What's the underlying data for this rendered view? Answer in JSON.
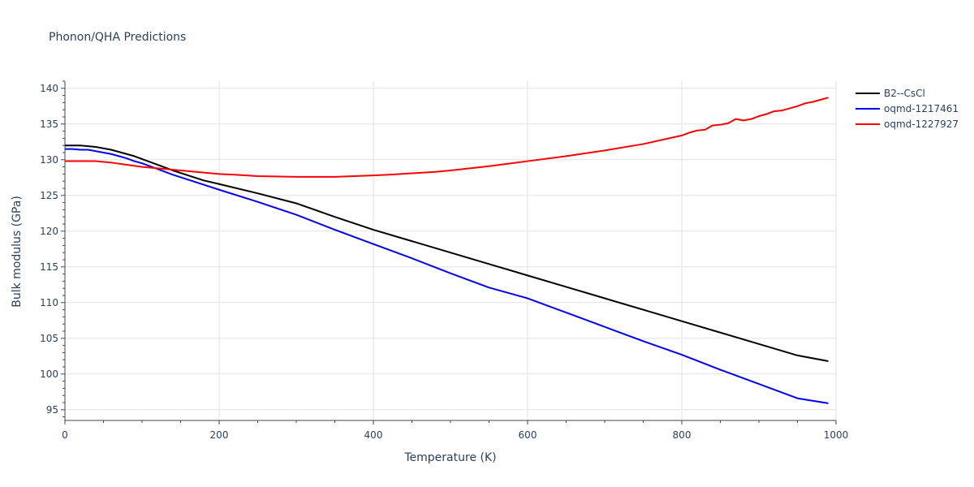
{
  "chart_data": {
    "type": "line",
    "title": "Phonon/QHA Predictions",
    "xlabel": "Temperature (K)",
    "ylabel": "Bulk modulus (GPa)",
    "xlim": [
      0,
      1000
    ],
    "ylim": [
      93.5,
      141
    ],
    "x_ticks": [
      0,
      200,
      400,
      600,
      800,
      1000
    ],
    "y_ticks": [
      95,
      100,
      105,
      110,
      115,
      120,
      125,
      130,
      135,
      140
    ],
    "grid": true,
    "legend_position": "top-right",
    "series": [
      {
        "name": "B2--CsCl",
        "color": "#000000",
        "x": [
          0,
          10,
          20,
          30,
          40,
          50,
          60,
          70,
          80,
          90,
          100,
          120,
          140,
          160,
          180,
          200,
          250,
          300,
          350,
          400,
          450,
          500,
          550,
          600,
          650,
          700,
          750,
          800,
          850,
          900,
          950,
          990
        ],
        "y": [
          132.0,
          132.0,
          132.0,
          131.9,
          131.8,
          131.6,
          131.4,
          131.1,
          130.8,
          130.5,
          130.1,
          129.3,
          128.5,
          127.8,
          127.1,
          126.6,
          125.3,
          123.9,
          122.0,
          120.2,
          118.6,
          117.0,
          115.4,
          113.8,
          112.2,
          110.6,
          109.0,
          107.4,
          105.8,
          104.2,
          102.6,
          101.8
        ]
      },
      {
        "name": "oqmd-1217461",
        "color": "#0000ff",
        "x": [
          0,
          10,
          20,
          30,
          40,
          50,
          60,
          70,
          80,
          90,
          100,
          120,
          140,
          160,
          180,
          200,
          250,
          300,
          350,
          400,
          450,
          500,
          550,
          600,
          650,
          700,
          750,
          800,
          850,
          900,
          950,
          990
        ],
        "y": [
          131.5,
          131.5,
          131.4,
          131.4,
          131.2,
          131.0,
          130.8,
          130.5,
          130.2,
          129.8,
          129.5,
          128.7,
          127.9,
          127.2,
          126.5,
          125.8,
          124.1,
          122.3,
          120.2,
          118.2,
          116.2,
          114.1,
          112.1,
          110.6,
          108.6,
          106.6,
          104.6,
          102.7,
          100.6,
          98.6,
          96.6,
          95.9
        ]
      },
      {
        "name": "oqmd-1227927",
        "color": "#ff0000",
        "x": [
          0,
          20,
          40,
          60,
          80,
          100,
          120,
          140,
          160,
          180,
          200,
          220,
          250,
          300,
          350,
          400,
          420,
          450,
          480,
          500,
          550,
          600,
          650,
          700,
          750,
          800,
          810,
          820,
          830,
          840,
          850,
          860,
          870,
          880,
          890,
          900,
          910,
          920,
          930,
          940,
          950,
          960,
          970,
          980,
          990
        ],
        "y": [
          129.8,
          129.8,
          129.8,
          129.6,
          129.3,
          129.0,
          128.8,
          128.6,
          128.4,
          128.2,
          128.0,
          127.9,
          127.7,
          127.6,
          127.6,
          127.8,
          127.9,
          128.1,
          128.3,
          128.5,
          129.1,
          129.8,
          130.5,
          131.3,
          132.2,
          133.4,
          133.8,
          134.1,
          134.2,
          134.8,
          134.9,
          135.1,
          135.7,
          135.5,
          135.7,
          136.1,
          136.4,
          136.8,
          136.9,
          137.2,
          137.5,
          137.9,
          138.1,
          138.4,
          138.7
        ]
      }
    ]
  }
}
